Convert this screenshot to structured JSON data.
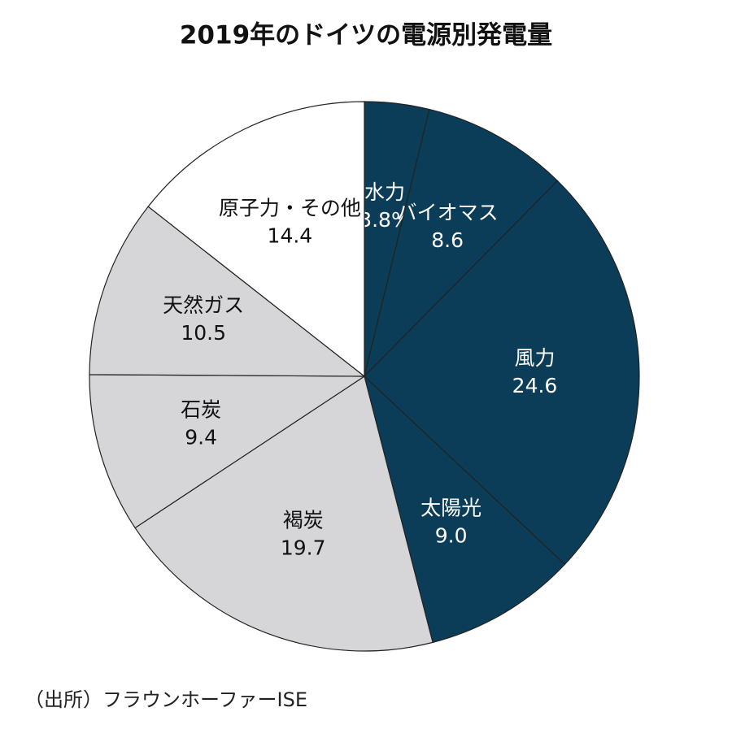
{
  "chart_data": {
    "type": "pie",
    "title": "2019年のドイツの電源別発電量",
    "categories": [
      "水力",
      "バイオマス",
      "風力",
      "太陽光",
      "褐炭",
      "石炭",
      "天然ガス",
      "原子力・その他"
    ],
    "values": [
      3.8,
      8.6,
      24.6,
      9.0,
      19.7,
      9.4,
      10.5,
      14.4
    ],
    "value_labels": [
      "3.8%",
      "8.6",
      "24.6",
      "9.0",
      "19.7",
      "9.4",
      "10.5",
      "14.4"
    ],
    "colors": [
      "#0b3d58",
      "#0b3d58",
      "#0b3d58",
      "#0b3d58",
      "#d6d6d9",
      "#d6d6d9",
      "#d6d6d9",
      "#ffffff"
    ],
    "source": "（出所）フラウンホーファーISE"
  }
}
